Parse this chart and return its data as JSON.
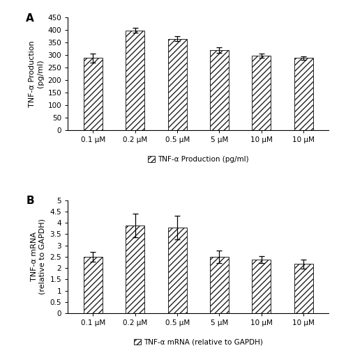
{
  "panel_A": {
    "categories": [
      "0.1 μM",
      "0.2 μM",
      "0.5 μM",
      "5 μM",
      "10 μM",
      "10 μM"
    ],
    "values": [
      288,
      398,
      365,
      320,
      297,
      288
    ],
    "errors": [
      18,
      10,
      10,
      12,
      8,
      8
    ],
    "ylabel": "TNF-α Production\n(pg/ml)",
    "ylim": [
      0,
      450
    ],
    "yticks": [
      0,
      50,
      100,
      150,
      200,
      250,
      300,
      350,
      400,
      450
    ],
    "ytick_labels": [
      "0",
      "50",
      "100",
      "150",
      "200",
      "250",
      "300",
      "350",
      "400",
      "450"
    ],
    "legend_label": "TNF-α Production (pg/ml)",
    "panel_label": "A"
  },
  "panel_B": {
    "categories": [
      "0.1 μM",
      "0.2 μM",
      "0.5 μM",
      "5 μM",
      "10 μM",
      "10 μM"
    ],
    "values": [
      2.5,
      3.88,
      3.78,
      2.5,
      2.38,
      2.18
    ],
    "errors": [
      0.22,
      0.52,
      0.52,
      0.28,
      0.15,
      0.2
    ],
    "ylabel": "TNF-α mRNA\n(relative to GAPDH)",
    "ylim": [
      0,
      5
    ],
    "yticks": [
      0,
      0.5,
      1.0,
      1.5,
      2.0,
      2.5,
      3.0,
      3.5,
      4.0,
      4.5,
      5.0
    ],
    "ytick_labels": [
      "0",
      "0.5",
      "1",
      "1.5",
      "2",
      "2.5",
      "3",
      "3.5",
      "4",
      "4.5",
      "5"
    ],
    "legend_label": "TNF-α mRNA (relative to GAPDH)",
    "panel_label": "B"
  },
  "bar_color": "#ffffff",
  "bar_edgecolor": "#222222",
  "hatch": "////",
  "figsize": [
    4.86,
    5.0
  ],
  "dpi": 100
}
